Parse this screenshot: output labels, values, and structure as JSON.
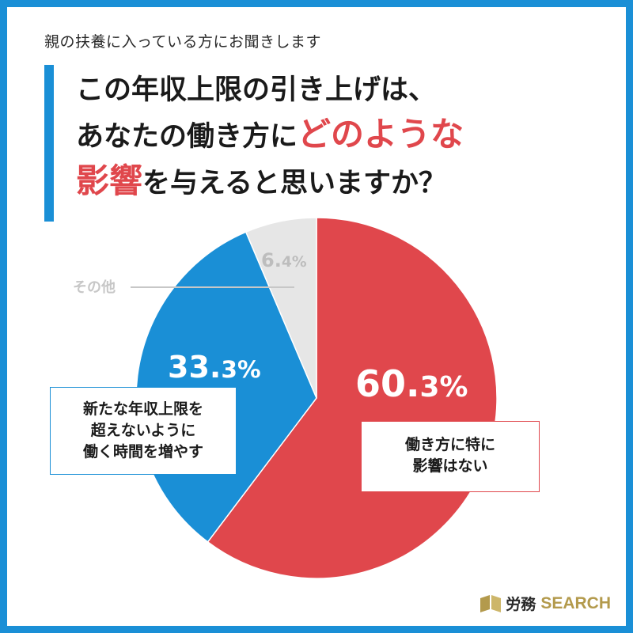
{
  "header": {
    "subtitle": "親の扶養に入っている方にお聞きします",
    "title_line1": "この年収上限の引き上げは、",
    "title_line2_a": "あなたの働き方に",
    "title_line2_b": "どのような",
    "title_line3_a": "影響",
    "title_line3_b": "を与えると思いますか？"
  },
  "chart_data": {
    "type": "pie",
    "start_angle_deg": 0,
    "direction": "clockwise",
    "slices": [
      {
        "label": "働き方に特に\n影響はない",
        "value": 60.3,
        "int": "60.",
        "dec": "3%",
        "color": "#e0474c"
      },
      {
        "label": "新たな年収上限を\n超えないように\n働く時間を増やす",
        "value": 33.3,
        "int": "33.",
        "dec": "3%",
        "color": "#1a8fd6"
      },
      {
        "label": "その他",
        "value": 6.4,
        "int": "6.",
        "dec": "4%",
        "color": "#e6e6e6"
      }
    ]
  },
  "logo": {
    "text_ja": "労務",
    "text_en": "SEARCH"
  },
  "colors": {
    "accent_blue": "#1a8fd6",
    "accent_red": "#e0474c",
    "other_gray": "#e6e6e6"
  }
}
